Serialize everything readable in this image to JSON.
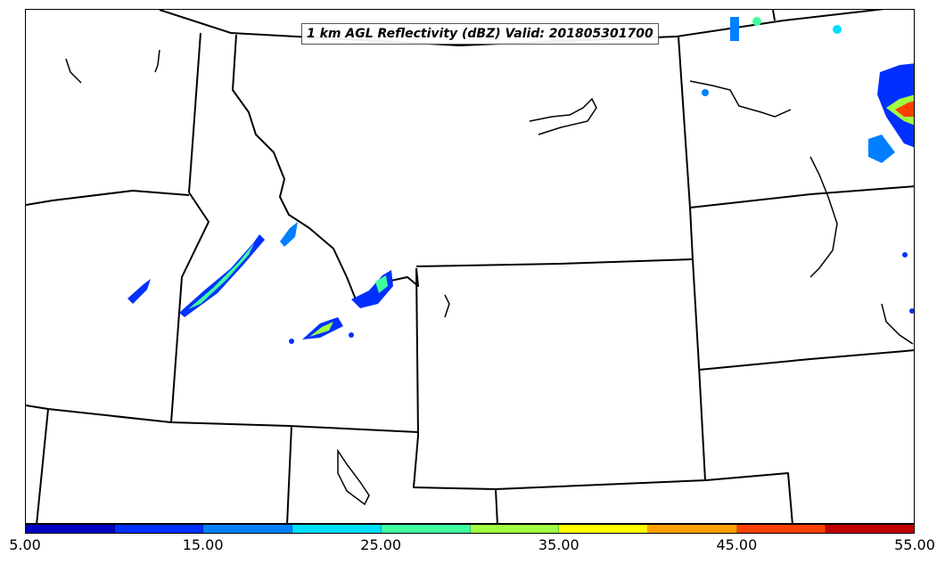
{
  "title": "1 km AGL Reflectivity (dBZ) Valid: 201805301700",
  "colorbar": {
    "colors": [
      "#0000c0",
      "#0030ff",
      "#0080ff",
      "#00e0ff",
      "#40ffa0",
      "#a0ff40",
      "#ffff00",
      "#ffa000",
      "#ff4000",
      "#c00000"
    ],
    "tick_labels": [
      "5.00",
      "15.00",
      "25.00",
      "35.00",
      "45.00",
      "55.00"
    ]
  },
  "map": {
    "boundary_color": "#000000",
    "background": "#ffffff"
  }
}
